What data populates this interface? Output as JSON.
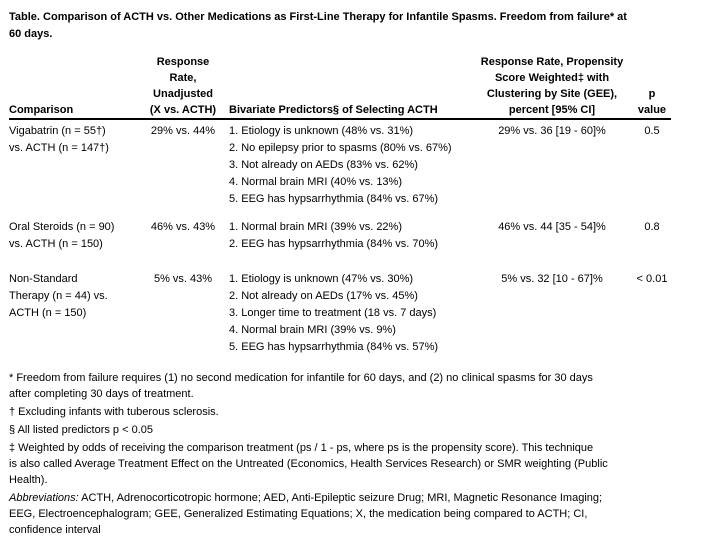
{
  "title": "Table.  Comparison of ACTH vs. Other Medications as First-Line Therapy for Infantile Spasms.  Freedom from failure* at\n60 days.",
  "table": {
    "headers": {
      "comparison": "Comparison",
      "unadjusted": "Response\nRate,\nUnadjusted\n(X vs. ACTH)",
      "predictors": "Bivariate Predictors§ of Selecting ACTH",
      "propensity": "Response Rate, Propensity\nScore Weighted‡ with\nClustering by Site (GEE),\npercent [95% CI]",
      "p_value": "p\nvalue"
    },
    "rows": [
      {
        "comparison": "Vigabatrin (n = 55†)\nvs. ACTH (n = 147†)",
        "unadjusted": "29% vs. 44%",
        "predictors": [
          "1. Etiology is unknown (48% vs. 31%)",
          "2. No epilepsy prior to spasms (80% vs. 67%)",
          "3. Not already on AEDs (83% vs. 62%)",
          "4. Normal brain MRI (40% vs. 13%)",
          "5. EEG has hypsarrhythmia (84% vs. 67%)"
        ],
        "propensity": "29% vs. 36 [19 - 60]%",
        "p_value": "0.5"
      },
      {
        "comparison": "Oral Steroids (n = 90)\nvs. ACTH (n = 150)",
        "unadjusted": "46% vs. 43%",
        "predictors": [
          "1. Normal brain MRI (39% vs. 22%)",
          "2. EEG has hypsarrhythmia (84% vs. 70%)"
        ],
        "propensity": "46% vs. 44 [35 - 54]%",
        "p_value": "0.8"
      },
      {
        "comparison": "Non-Standard\nTherapy (n = 44) vs.\nACTH (n = 150)",
        "unadjusted": "5% vs. 43%",
        "predictors": [
          "1. Etiology is unknown (47% vs. 30%)",
          "2. Not already on AEDs (17% vs. 45%)",
          "3. Longer time to treatment (18 vs. 7 days)",
          "4. Normal brain MRI (39% vs. 9%)",
          "5. EEG has hypsarrhythmia (84% vs. 57%)"
        ],
        "propensity": "5% vs. 32 [10 - 67]%",
        "p_value": "< 0.01"
      }
    ]
  },
  "footnotes": [
    "* Freedom from failure requires (1) no second medication for infantile for 60 days, and (2) no clinical spasms for 30 days\nafter completing 30 days of treatment.",
    "† Excluding infants with tuberous sclerosis.",
    "§ All listed predictors p < 0.05",
    "‡ Weighted by odds of receiving the comparison treatment (ps / 1 - ps, where ps is the propensity score). This technique\nis also called Average Treatment Effect on the Untreated (Economics, Health Services Research) or SMR weighting (Public\nHealth)."
  ],
  "abbreviations": {
    "label": "Abbreviations:",
    "text": " ACTH, Adrenocorticotropic hormone; AED, Anti-Epileptic seizure Drug; MRI, Magnetic Resonance Imaging;\nEEG, Electroencephalogram; GEE, Generalized Estimating Equations; X, the medication being compared to ACTH; CI,\nconfidence interval"
  }
}
